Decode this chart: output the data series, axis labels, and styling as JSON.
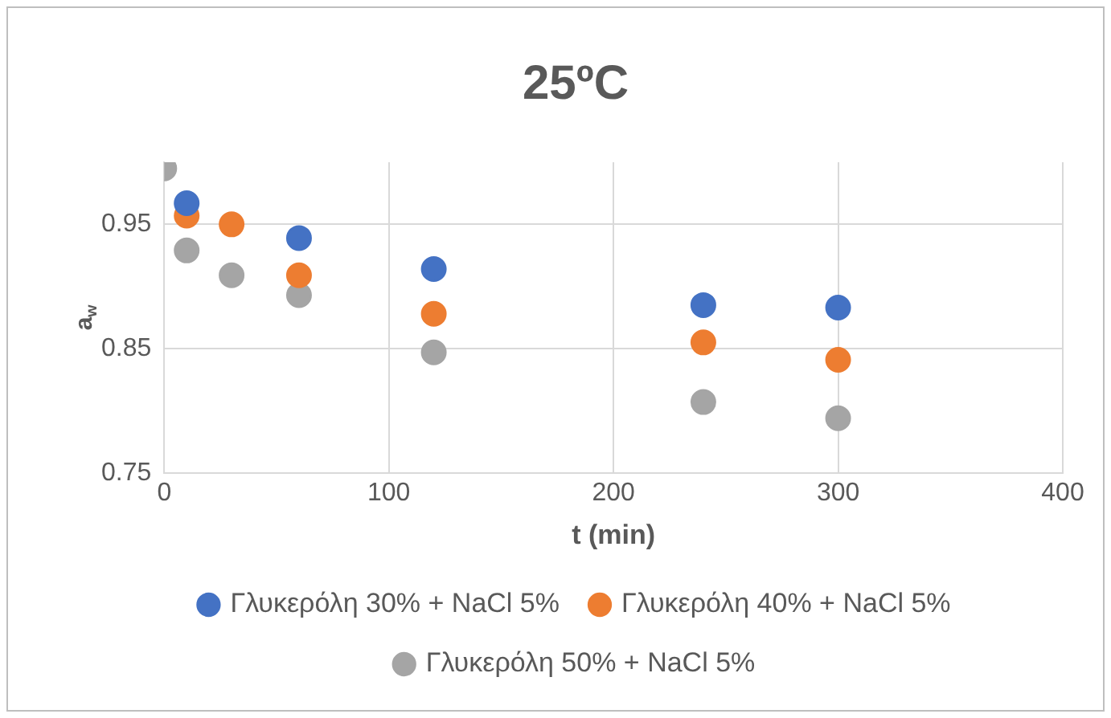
{
  "chart_data": {
    "type": "scatter",
    "title": "25ºC",
    "xlabel": "t (min)",
    "ylabel": "a$_{w}$",
    "x": [
      0,
      10,
      30,
      60,
      120,
      240,
      300
    ],
    "series": [
      {
        "name": "Γλυκερόλη 30% + NaCl 5%",
        "color": "#4472c4",
        "values": [
          null,
          0.967,
          null,
          0.939,
          0.914,
          0.885,
          0.883
        ]
      },
      {
        "name": "Γλυκερόλη 40% + NaCl 5%",
        "color": "#ed7d31",
        "values": [
          null,
          0.957,
          0.95,
          0.909,
          0.878,
          0.855,
          0.841
        ]
      },
      {
        "name": "Γλυκερόλη 50% + NaCl 5%",
        "color": "#a5a5a5",
        "values": [
          0.995,
          0.929,
          0.909,
          0.893,
          0.847,
          0.807,
          0.794
        ]
      }
    ],
    "xlim": [
      0,
      400
    ],
    "xticks": [
      0,
      100,
      200,
      300,
      400
    ],
    "ylim": [
      0.75,
      1.0
    ],
    "yticks": [
      0.75,
      0.85,
      0.95
    ],
    "grid": true,
    "legend": "bottom",
    "marker": "circle"
  }
}
